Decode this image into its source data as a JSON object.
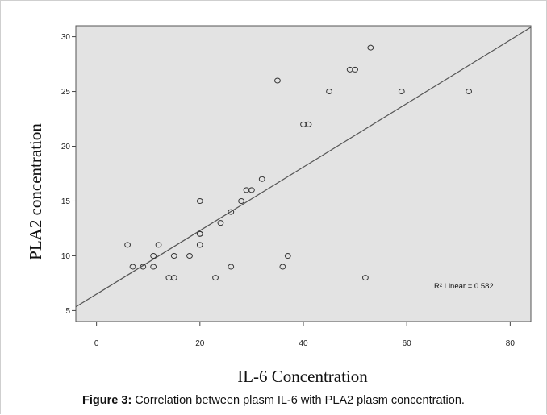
{
  "caption": {
    "label": "Figure 3:",
    "text": " Correlation between plasm IL-6 with PLA2 plasm concentration."
  },
  "chart_data": {
    "type": "scatter",
    "xlabel": "IL-6  Concentration",
    "ylabel": "PLA2 concentration",
    "xlim": [
      -4,
      84
    ],
    "ylim": [
      4,
      31
    ],
    "xticks": [
      0,
      20,
      40,
      60,
      80
    ],
    "yticks": [
      5,
      10,
      15,
      20,
      25,
      30
    ],
    "grid": false,
    "annotation": "R² Linear = 0.582",
    "fit_line": {
      "intercept": 6.5,
      "slope": 0.29
    },
    "points": [
      {
        "x": 6,
        "y": 11
      },
      {
        "x": 7,
        "y": 9
      },
      {
        "x": 9,
        "y": 9
      },
      {
        "x": 11,
        "y": 9
      },
      {
        "x": 11,
        "y": 10
      },
      {
        "x": 12,
        "y": 11
      },
      {
        "x": 14,
        "y": 8
      },
      {
        "x": 15,
        "y": 8
      },
      {
        "x": 15,
        "y": 10
      },
      {
        "x": 18,
        "y": 10
      },
      {
        "x": 20,
        "y": 11
      },
      {
        "x": 20,
        "y": 11
      },
      {
        "x": 20,
        "y": 12
      },
      {
        "x": 20,
        "y": 12
      },
      {
        "x": 20,
        "y": 15
      },
      {
        "x": 23,
        "y": 8
      },
      {
        "x": 24,
        "y": 13
      },
      {
        "x": 26,
        "y": 9
      },
      {
        "x": 26,
        "y": 14
      },
      {
        "x": 28,
        "y": 15
      },
      {
        "x": 29,
        "y": 16
      },
      {
        "x": 30,
        "y": 16
      },
      {
        "x": 32,
        "y": 17
      },
      {
        "x": 35,
        "y": 26
      },
      {
        "x": 36,
        "y": 9
      },
      {
        "x": 37,
        "y": 10
      },
      {
        "x": 40,
        "y": 22
      },
      {
        "x": 41,
        "y": 22
      },
      {
        "x": 41,
        "y": 22
      },
      {
        "x": 45,
        "y": 25
      },
      {
        "x": 49,
        "y": 27
      },
      {
        "x": 50,
        "y": 27
      },
      {
        "x": 52,
        "y": 8
      },
      {
        "x": 53,
        "y": 29
      },
      {
        "x": 59,
        "y": 25
      },
      {
        "x": 72,
        "y": 25
      }
    ]
  }
}
